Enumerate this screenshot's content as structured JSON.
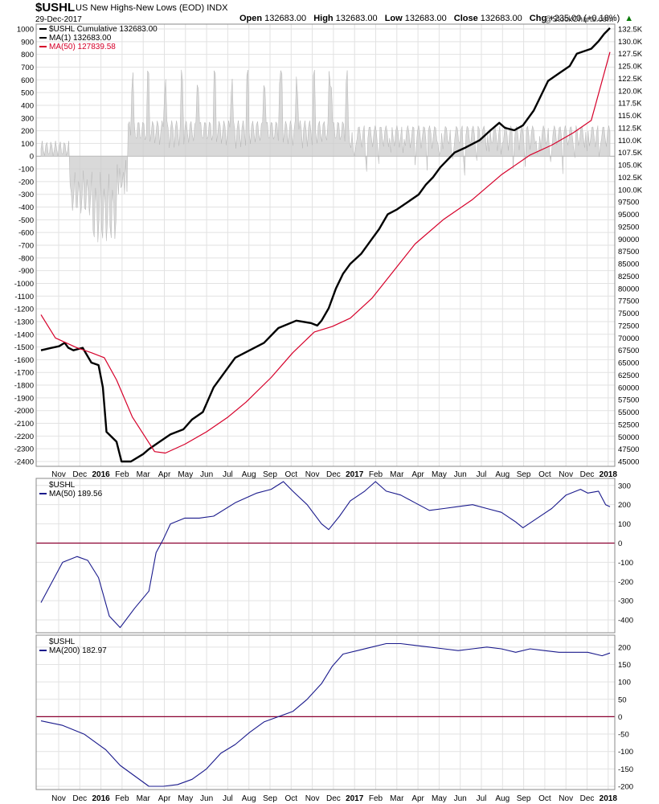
{
  "header": {
    "symbol": "$USHL",
    "description": "US New Highs-New Lows (EOD)",
    "exchange": "INDX",
    "date": "29-Dec-2017",
    "open_label": "Open",
    "open": "132683.00",
    "high_label": "High",
    "high": "132683.00",
    "low_label": "Low",
    "low": "132683.00",
    "close_label": "Close",
    "close": "132683.00",
    "chg_label": "Chg",
    "chg": "+235.00 (+0.18%)",
    "logo": "@StockCharts.com"
  },
  "colors": {
    "cumulative": "#000000",
    "ma_red": "#d6002a",
    "blue": "#1a1a8c",
    "hist_pos": "#cccccc",
    "hist_neg": "#f4c4c4",
    "zero_line": "#8b0030",
    "grid": "#e2e2e2"
  },
  "chart_data": [
    {
      "type": "line",
      "panel": "main",
      "legend": [
        "$USHL Cumulative 132683.00",
        "MA(1) 132683.00",
        "MA(50) 127839.58"
      ],
      "left_axis_ticks": [
        1000,
        900,
        800,
        700,
        600,
        500,
        400,
        300,
        200,
        100,
        0,
        -100,
        -200,
        -300,
        -400,
        -500,
        -600,
        -700,
        -800,
        -900,
        -1000,
        -1100,
        -1200,
        -1300,
        -1400,
        -1500,
        -1600,
        -1700,
        -1800,
        -1900,
        -2000,
        -2100,
        -2200,
        -2300,
        -2400
      ],
      "right_axis_ticks": [
        "132.5K",
        "130.0K",
        "127.5K",
        "125.0K",
        "122.5K",
        "120.0K",
        "117.5K",
        "115.0K",
        "112.5K",
        "110.0K",
        "107.5K",
        "105.0K",
        "102.5K",
        "100.0K",
        "97500",
        "95000",
        "92500",
        "90000",
        "87500",
        "85000",
        "82500",
        "80000",
        "77500",
        "75000",
        "72500",
        "70000",
        "67500",
        "65000",
        "62500",
        "60000",
        "57500",
        "55000",
        "52500",
        "50000",
        "47500",
        "45000"
      ],
      "x_ticks": [
        "Nov",
        "Dec",
        "2016",
        "Feb",
        "Mar",
        "Apr",
        "May",
        "Jun",
        "Jul",
        "Aug",
        "Sep",
        "Oct",
        "Nov",
        "Dec",
        "2017",
        "Feb",
        "Mar",
        "Apr",
        "May",
        "Jun",
        "Jul",
        "Aug",
        "Sep",
        "Oct",
        "Nov",
        "Dec",
        "2018"
      ],
      "right_ylim": [
        45000,
        132500
      ],
      "left_ylim": [
        -2400,
        1000
      ],
      "series": [
        {
          "name": "$USHL Cumulative",
          "color": "#000000",
          "axis": "right",
          "values": [
            [
              0,
              67500
            ],
            [
              1.5,
              68000
            ],
            [
              2.5,
              68300
            ],
            [
              3.3,
              69000
            ],
            [
              3.8,
              68000
            ],
            [
              4.5,
              67500
            ],
            [
              5.8,
              68000
            ],
            [
              7,
              65000
            ],
            [
              8,
              64500
            ],
            [
              8.6,
              60000
            ],
            [
              9.1,
              51000
            ],
            [
              10.5,
              49000
            ],
            [
              11.2,
              45000
            ],
            [
              12.5,
              45000
            ],
            [
              14.2,
              46500
            ],
            [
              15,
              47500
            ],
            [
              16.5,
              49000
            ],
            [
              18,
              50500
            ],
            [
              19.8,
              51500
            ],
            [
              21,
              53500
            ],
            [
              22.5,
              55000
            ],
            [
              24,
              60000
            ],
            [
              27,
              66000
            ],
            [
              31,
              69000
            ],
            [
              33,
              72000
            ],
            [
              35.5,
              73500
            ],
            [
              37.5,
              73000
            ],
            [
              38.4,
              72500
            ],
            [
              39,
              73500
            ],
            [
              40,
              76000
            ],
            [
              41,
              80000
            ],
            [
              42,
              83000
            ],
            [
              43,
              85000
            ],
            [
              44.5,
              87000
            ],
            [
              46,
              90000
            ],
            [
              47,
              92000
            ],
            [
              48.2,
              95000
            ],
            [
              49.5,
              96000
            ],
            [
              51,
              97500
            ],
            [
              52.5,
              99000
            ],
            [
              53.5,
              101000
            ],
            [
              54.5,
              102500
            ],
            [
              55.5,
              104500
            ],
            [
              56.5,
              106000
            ],
            [
              57.5,
              107500
            ],
            [
              59,
              108500
            ],
            [
              61,
              110000
            ],
            [
              62.5,
              112000
            ],
            [
              63.7,
              113500
            ],
            [
              64.5,
              112500
            ],
            [
              65.8,
              112000
            ],
            [
              67,
              113000
            ],
            [
              68.5,
              116000
            ],
            [
              69.5,
              119000
            ],
            [
              70.5,
              122000
            ],
            [
              72,
              123500
            ],
            [
              73.5,
              125000
            ],
            [
              74.5,
              127500
            ],
            [
              76.5,
              128500
            ],
            [
              77.5,
              130000
            ],
            [
              78.3,
              131500
            ],
            [
              79.1,
              132683
            ]
          ]
        },
        {
          "name": "MA(50)",
          "color": "#d6002a",
          "axis": "right",
          "values": [
            [
              0,
              74700
            ],
            [
              2,
              70000
            ],
            [
              5,
              68000
            ],
            [
              7,
              67000
            ],
            [
              8.8,
              66000
            ],
            [
              10.5,
              61500
            ],
            [
              12.7,
              54000
            ],
            [
              15.8,
              47000
            ],
            [
              17.3,
              46700
            ],
            [
              20,
              48500
            ],
            [
              23,
              51000
            ],
            [
              26,
              54000
            ],
            [
              28.5,
              57000
            ],
            [
              32,
              62000
            ],
            [
              35,
              67000
            ],
            [
              38,
              71200
            ],
            [
              40.5,
              72300
            ],
            [
              43,
              74000
            ],
            [
              46,
              78000
            ],
            [
              49,
              83500
            ],
            [
              52,
              89000
            ],
            [
              56,
              94000
            ],
            [
              60,
              98000
            ],
            [
              64,
              103000
            ],
            [
              68,
              107000
            ],
            [
              71,
              109000
            ],
            [
              74,
              111500
            ],
            [
              76.5,
              114000
            ],
            [
              79.1,
              127839
            ]
          ]
        }
      ],
      "histogram_note": "daily net highs minus lows shown as area on left axis"
    },
    {
      "type": "line",
      "panel": "middle",
      "legend": [
        "$USHL",
        "MA(50) 189.56"
      ],
      "axis_ticks": [
        300,
        200,
        100,
        0,
        -100,
        -200,
        -300,
        -400
      ],
      "ylim": [
        -450,
        320
      ],
      "series": [
        {
          "name": "MA(50)",
          "color": "#1a1a8c",
          "values": [
            [
              0,
              -310
            ],
            [
              3,
              -100
            ],
            [
              5,
              -70
            ],
            [
              6.5,
              -90
            ],
            [
              8,
              -180
            ],
            [
              9.5,
              -380
            ],
            [
              11,
              -440
            ],
            [
              13,
              -340
            ],
            [
              15,
              -250
            ],
            [
              16,
              -50
            ],
            [
              17,
              20
            ],
            [
              18,
              100
            ],
            [
              20,
              130
            ],
            [
              22,
              130
            ],
            [
              24,
              140
            ],
            [
              27,
              210
            ],
            [
              30,
              260
            ],
            [
              32,
              280
            ],
            [
              33.7,
              320
            ],
            [
              35,
              270
            ],
            [
              37,
              200
            ],
            [
              39,
              100
            ],
            [
              40,
              70
            ],
            [
              41.5,
              140
            ],
            [
              43,
              220
            ],
            [
              45,
              270
            ],
            [
              46.5,
              320
            ],
            [
              48,
              270
            ],
            [
              50,
              250
            ],
            [
              52,
              210
            ],
            [
              54,
              170
            ],
            [
              56,
              180
            ],
            [
              58,
              190
            ],
            [
              60,
              200
            ],
            [
              62,
              180
            ],
            [
              64,
              160
            ],
            [
              66,
              110
            ],
            [
              67,
              80
            ],
            [
              69,
              130
            ],
            [
              71,
              180
            ],
            [
              73,
              250
            ],
            [
              75,
              280
            ],
            [
              76,
              260
            ],
            [
              77.5,
              270
            ],
            [
              78.5,
              200
            ],
            [
              79.1,
              189.56
            ]
          ]
        }
      ]
    },
    {
      "type": "line",
      "panel": "bottom",
      "legend": [
        "$USHL",
        "MA(200) 182.97"
      ],
      "axis_ticks": [
        200,
        150,
        100,
        50,
        0,
        -50,
        -100,
        -150,
        -200
      ],
      "ylim": [
        -200,
        225
      ],
      "series": [
        {
          "name": "MA(200)",
          "color": "#1a1a8c",
          "values": [
            [
              0,
              -12
            ],
            [
              3,
              -25
            ],
            [
              6,
              -50
            ],
            [
              9,
              -95
            ],
            [
              11,
              -140
            ],
            [
              13,
              -170
            ],
            [
              15,
              -200
            ],
            [
              17,
              -200
            ],
            [
              19,
              -195
            ],
            [
              21,
              -180
            ],
            [
              23,
              -150
            ],
            [
              25,
              -105
            ],
            [
              27,
              -80
            ],
            [
              29,
              -45
            ],
            [
              31,
              -15
            ],
            [
              33,
              0
            ],
            [
              35,
              15
            ],
            [
              37,
              50
            ],
            [
              39,
              95
            ],
            [
              40.5,
              145
            ],
            [
              42,
              180
            ],
            [
              44,
              190
            ],
            [
              46,
              200
            ],
            [
              48,
              210
            ],
            [
              50,
              210
            ],
            [
              52,
              205
            ],
            [
              54,
              200
            ],
            [
              56,
              195
            ],
            [
              58,
              190
            ],
            [
              60,
              195
            ],
            [
              62,
              200
            ],
            [
              64,
              195
            ],
            [
              66,
              185
            ],
            [
              68,
              195
            ],
            [
              70,
              190
            ],
            [
              72,
              185
            ],
            [
              74,
              185
            ],
            [
              76,
              185
            ],
            [
              78,
              175
            ],
            [
              79.1,
              182.97
            ]
          ]
        }
      ]
    }
  ]
}
